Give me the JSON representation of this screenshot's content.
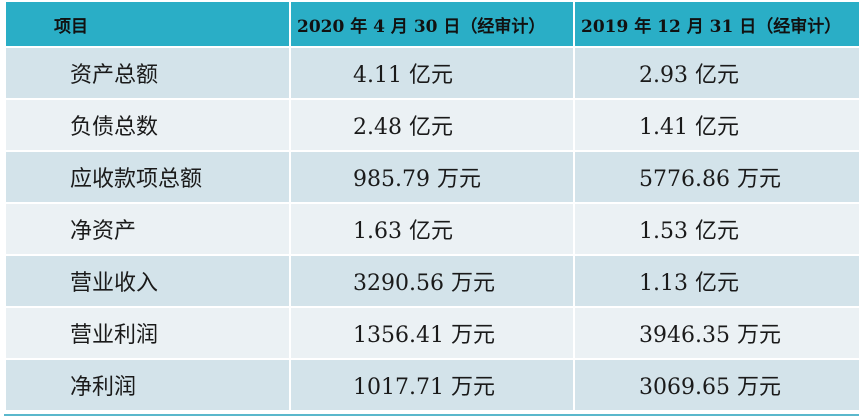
{
  "header": {
    "item": "项目",
    "col_2020": "2020 年 4 月 30 日（经审计）",
    "col_2019": "2019 年 12 月 31 日（经审计）"
  },
  "rows": [
    {
      "item": "资产总额",
      "v2020": "4.11 亿元",
      "v2019": "2.93 亿元"
    },
    {
      "item": "负债总数",
      "v2020": "2.48 亿元",
      "v2019": "1.41 亿元"
    },
    {
      "item": "应收款项总额",
      "v2020": "985.79 万元",
      "v2019": "5776.86 万元"
    },
    {
      "item": "净资产",
      "v2020": "1.63 亿元",
      "v2019": "1.53 亿元"
    },
    {
      "item": "营业收入",
      "v2020": "3290.56 万元",
      "v2019": "1.13 亿元"
    },
    {
      "item": "营业利润",
      "v2020": "1356.41 万元",
      "v2019": "3946.35 万元"
    },
    {
      "item": "净利润",
      "v2020": "1017.71 万元",
      "v2019": "3069.65 万元"
    }
  ],
  "colors": {
    "header_bg": "#2aaec6",
    "row_odd_bg": "#d3e3ea",
    "row_even_bg": "#ebf1f4"
  }
}
